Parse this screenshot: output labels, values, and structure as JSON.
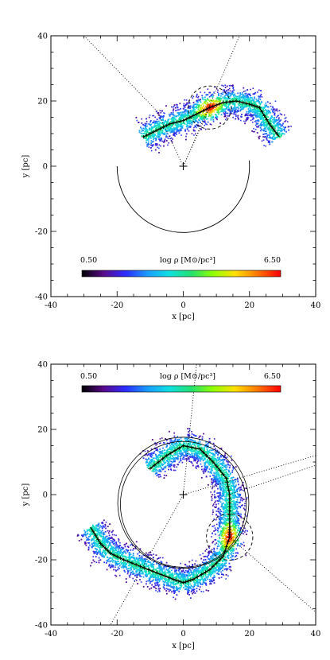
{
  "chart_data": [
    {
      "type": "scatter",
      "panel": "top",
      "xlabel": "x [pc]",
      "ylabel": "y [pc]",
      "xlim": [
        -40,
        40
      ],
      "ylim": [
        -40,
        40
      ],
      "xticks": [
        -40,
        -20,
        0,
        20,
        40
      ],
      "yticks": [
        -40,
        -20,
        0,
        20,
        40
      ],
      "grid": false,
      "colorbar": {
        "label": "log ρ [M⊙/pc³]",
        "min_label": "0.50",
        "max_label": "6.50",
        "min": 0.5,
        "max": 6.5,
        "colormap": [
          "#000000",
          "#5a0a8c",
          "#2a2cff",
          "#1a9cff",
          "#10e0e0",
          "#22e070",
          "#90ff00",
          "#ffe000",
          "#ff7a00",
          "#ff0000"
        ]
      },
      "spine": [
        [
          -12,
          9
        ],
        [
          -8,
          11
        ],
        [
          -4,
          13
        ],
        [
          0,
          14
        ],
        [
          4,
          16
        ],
        [
          8,
          18
        ],
        [
          12,
          19.5
        ],
        [
          16,
          20
        ],
        [
          20,
          19
        ],
        [
          23,
          18
        ],
        [
          26,
          13
        ],
        [
          29,
          9
        ]
      ],
      "dense_clump": {
        "x": 8,
        "y": 18,
        "log_rho": 6.3
      },
      "center_marker": {
        "x": 0,
        "y": 0
      },
      "arc": {
        "cx": 0,
        "cy": 0,
        "r": 20,
        "from_angle": 180,
        "to_angle": 5,
        "direction": "clockwise-below"
      },
      "dashed_circle": {
        "cx": 8,
        "cy": 18,
        "r": 6.5
      },
      "dotted_lines": [
        [
          [
            -30,
            40
          ],
          [
            -8,
            17
          ]
        ],
        [
          [
            0,
            0
          ],
          [
            8,
            18
          ]
        ],
        [
          [
            -8,
            17
          ],
          [
            0,
            0
          ]
        ],
        [
          [
            0,
            0
          ],
          [
            17,
            40
          ]
        ]
      ]
    },
    {
      "type": "scatter",
      "panel": "bottom",
      "xlabel": "x [pc]",
      "ylabel": "y [pc]",
      "xlim": [
        -40,
        40
      ],
      "ylim": [
        -40,
        40
      ],
      "xticks": [
        -40,
        -20,
        0,
        20,
        40
      ],
      "yticks": [
        -40,
        -20,
        0,
        20,
        40
      ],
      "grid": false,
      "colorbar": {
        "label": "log ρ [M⊙/pc³]",
        "min_label": "0.50",
        "max_label": "6.50",
        "min": 0.5,
        "max": 6.5,
        "colormap": [
          "#000000",
          "#5a0a8c",
          "#2a2cff",
          "#1a9cff",
          "#10e0e0",
          "#22e070",
          "#90ff00",
          "#ffe000",
          "#ff7a00",
          "#ff0000"
        ]
      },
      "spine": [
        [
          -10,
          8
        ],
        [
          -5,
          12
        ],
        [
          0,
          15
        ],
        [
          5,
          14
        ],
        [
          9,
          10
        ],
        [
          13,
          5
        ],
        [
          14,
          0
        ],
        [
          14,
          -5
        ],
        [
          14,
          -10
        ],
        [
          14,
          -13
        ],
        [
          12,
          -19
        ],
        [
          8,
          -23
        ],
        [
          3,
          -26
        ],
        [
          0,
          -27
        ],
        [
          -3,
          -26
        ],
        [
          -8,
          -24
        ],
        [
          -13,
          -22
        ],
        [
          -18,
          -20
        ],
        [
          -22,
          -18
        ],
        [
          -25,
          -15
        ],
        [
          -28,
          -10
        ]
      ],
      "dense_clump": {
        "x": 14,
        "y": -13,
        "log_rho": 5.8
      },
      "center_marker": {
        "x": 0,
        "y": 0
      },
      "circles": [
        {
          "cx": 0,
          "cy": -3,
          "r": 19
        },
        {
          "cx": 0,
          "cy": -2.5,
          "r": 19.8
        }
      ],
      "dashed_circle": {
        "cx": 14,
        "cy": -13,
        "r": 7
      },
      "dotted_lines": [
        [
          [
            0,
            0
          ],
          [
            4,
            40
          ]
        ],
        [
          [
            0,
            0
          ],
          [
            -22,
            -40
          ]
        ],
        [
          [
            0,
            0
          ],
          [
            40,
            12
          ]
        ],
        [
          [
            14,
            -13
          ],
          [
            40,
            -36
          ]
        ],
        [
          [
            14,
            0
          ],
          [
            40,
            9
          ]
        ]
      ]
    }
  ]
}
